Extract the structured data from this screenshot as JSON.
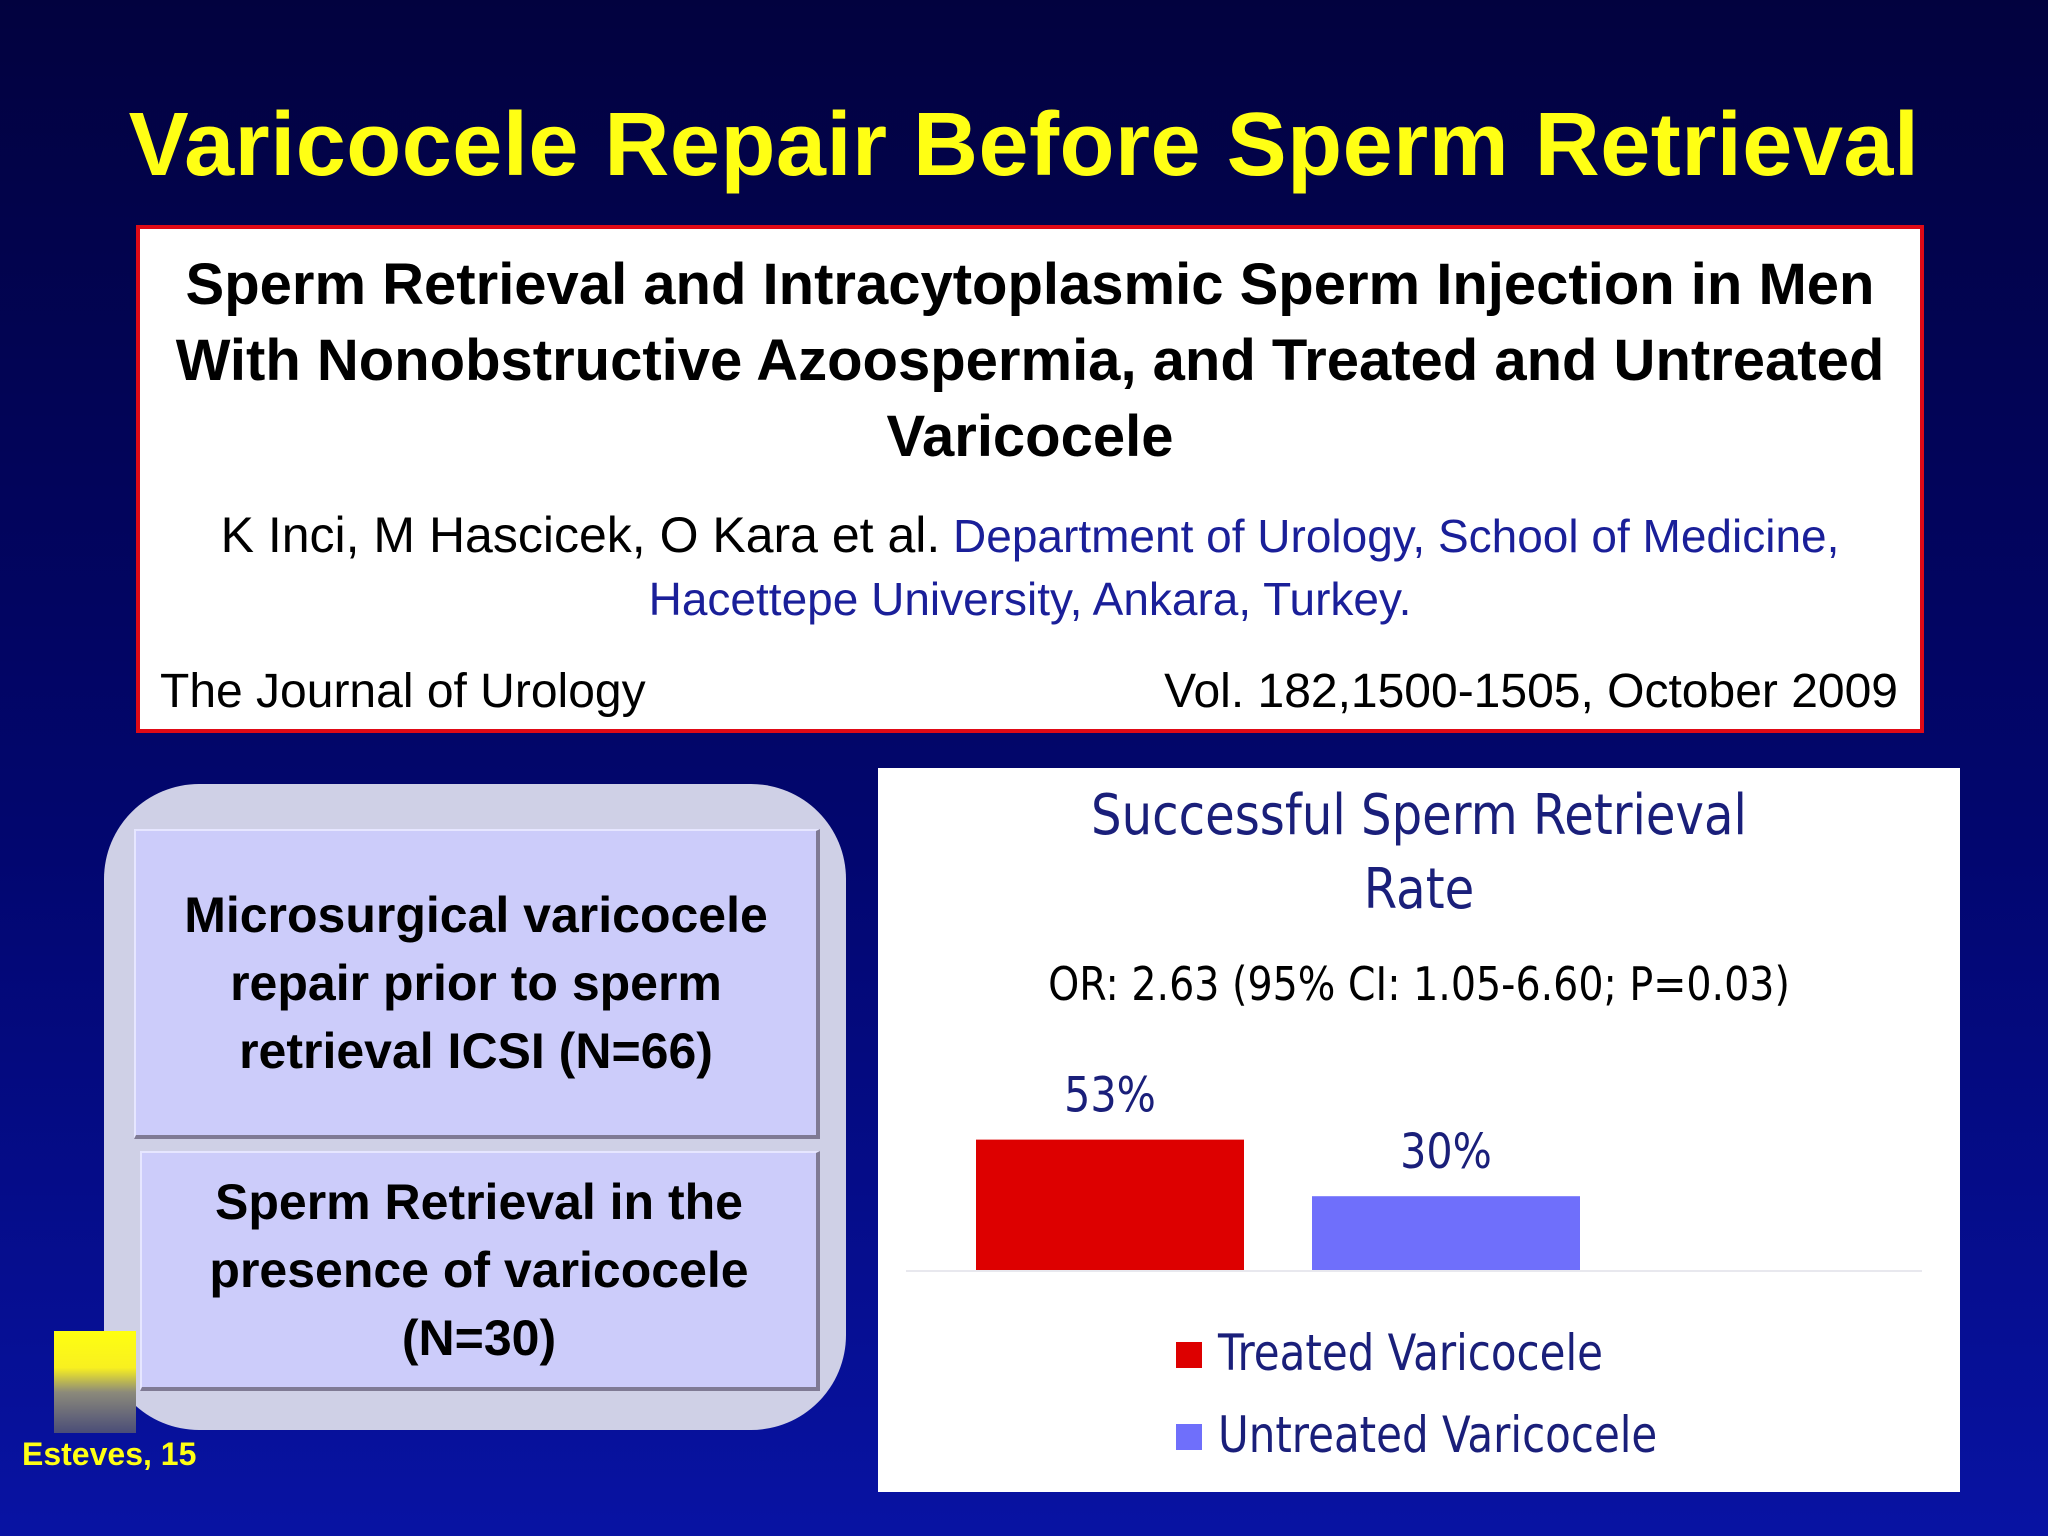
{
  "slide": {
    "title": "Varicocele Repair Before Sperm Retrieval",
    "footer_credit": "Esteves, 15"
  },
  "reference": {
    "title": "Sperm Retrieval and Intracytoplasmic Sperm Injection in Men With Nonobstructive Azoospermia, and Treated and Untreated Varicocele",
    "authors": "K Inci, M Hascicek, O Kara et al.",
    "affiliation": "Department of Urology, School of Medicine, Hacettepe University, Ankara, Turkey.",
    "journal": "The Journal of Urology",
    "volume": "Vol. 182,1500-1505, October 2009",
    "colors": {
      "border": "#e00a16",
      "affiliation": "#1a1f99"
    }
  },
  "groups": [
    {
      "text": "Microsurgical varicocele repair prior to sperm retrieval  ICSI (N=66)"
    },
    {
      "text": "Sperm Retrieval in the presence of varicocele (N=30)"
    }
  ],
  "chart_data": {
    "type": "bar",
    "title": "Successful Sperm Retrieval Rate",
    "subtitle": "OR: 2.63 (95% CI: 1.05-6.60; P=0.03)",
    "series": [
      {
        "name": "Treated Varicocele",
        "value": 53,
        "label": "53%",
        "color": "#dd0000"
      },
      {
        "name": "Untreated Varicocele",
        "value": 30,
        "label": "30%",
        "color": "#6f6ffb"
      }
    ],
    "unit": "%",
    "xlabel": "",
    "ylabel": "",
    "grid": false,
    "legend_position": "bottom",
    "text_color": "#1a1f7a"
  },
  "colors": {
    "background_top": "#02023f",
    "background_bottom": "#0813a3",
    "title": "#ffff14"
  }
}
